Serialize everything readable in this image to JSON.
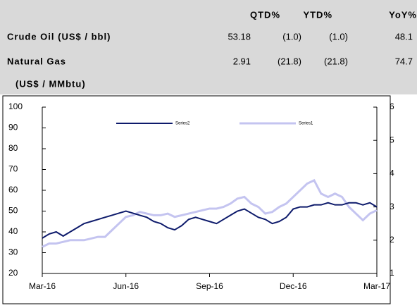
{
  "table": {
    "header": [
      "QTD%",
      "YTD%",
      "YoY%"
    ],
    "rows": [
      [
        "Crude Oil (US$ / bbl)",
        "53.18",
        "(1.0)",
        "(1.0)",
        "48.1"
      ],
      [
        "Natural Gas",
        "2.91",
        "(21.8)",
        "(21.8)",
        "74.7"
      ]
    ],
    "note": "(US$ / MMbtu)"
  },
  "chart_data": {
    "type": "line",
    "categories": [
      "Mar-16",
      null,
      null,
      null,
      null,
      null,
      null,
      null,
      null,
      null,
      null,
      null,
      "Jun-16",
      null,
      null,
      null,
      null,
      null,
      null,
      null,
      null,
      null,
      null,
      null,
      "Sep-16",
      null,
      null,
      null,
      null,
      null,
      null,
      null,
      null,
      null,
      null,
      null,
      "Dec-16",
      null,
      null,
      null,
      null,
      null,
      null,
      null,
      null,
      null,
      null,
      null,
      "Mar-17"
    ],
    "series": [
      {
        "name": "Series2",
        "color": "#0d1a6b",
        "axis": "y",
        "values": [
          37,
          39,
          40,
          38,
          40,
          42,
          44,
          45,
          46,
          47,
          48,
          49,
          50,
          49,
          48,
          47,
          45,
          44,
          42,
          41,
          43,
          46,
          47,
          46,
          45,
          44,
          46,
          48,
          50,
          51,
          49,
          47,
          46,
          44,
          45,
          47,
          51,
          52,
          52,
          53,
          53,
          54,
          53,
          53,
          54,
          54,
          53,
          54,
          52
        ]
      },
      {
        "name": "Series1",
        "color": "#c4c4f0",
        "axis": "y2",
        "values": [
          1.8,
          1.9,
          1.9,
          1.95,
          2.0,
          2.0,
          2.0,
          2.05,
          2.1,
          2.1,
          2.3,
          2.5,
          2.7,
          2.75,
          2.85,
          2.8,
          2.75,
          2.75,
          2.8,
          2.7,
          2.75,
          2.8,
          2.85,
          2.9,
          2.95,
          2.95,
          3.0,
          3.1,
          3.25,
          3.3,
          3.1,
          3.0,
          2.8,
          2.85,
          3.0,
          3.1,
          3.3,
          3.5,
          3.7,
          3.8,
          3.4,
          3.3,
          3.4,
          3.3,
          3.0,
          2.8,
          2.6,
          2.8,
          2.9
        ]
      }
    ],
    "ylim": [
      20,
      100
    ],
    "yticks": [
      20,
      30,
      40,
      50,
      60,
      70,
      80,
      90,
      100
    ],
    "y2lim": [
      1,
      6
    ],
    "y2ticks": [
      1,
      2,
      3,
      4,
      5,
      6
    ],
    "grid": false,
    "legend": "upper center"
  }
}
